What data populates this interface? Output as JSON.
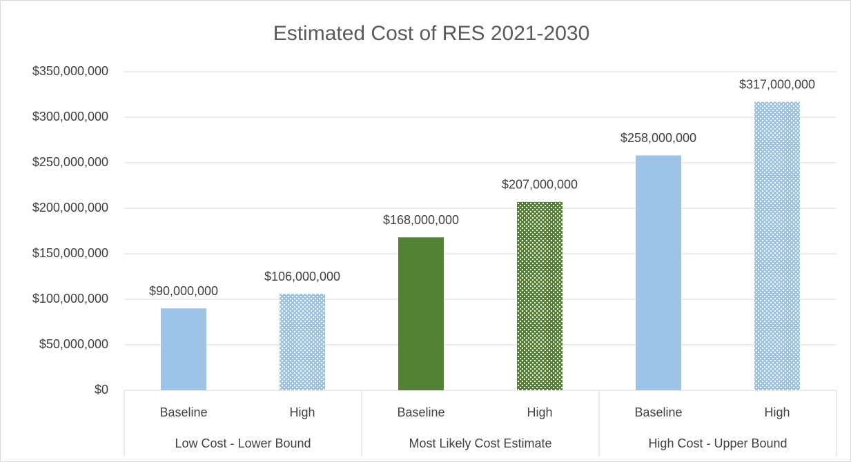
{
  "chart_data": {
    "type": "bar",
    "title": "Estimated Cost of RES 2021-2030",
    "categories": [
      "Baseline",
      "High",
      "Baseline",
      "High",
      "Baseline",
      "High"
    ],
    "category_groups": [
      "Low Cost - Lower Bound",
      "Most Likely Cost Estimate",
      "High Cost - Upper Bound"
    ],
    "values": [
      90000000,
      106000000,
      168000000,
      207000000,
      258000000,
      317000000
    ],
    "value_labels": [
      "$90,000,000",
      "$106,000,000",
      "$168,000,000",
      "$207,000,000",
      "$258,000,000",
      "$317,000,000"
    ],
    "colors": [
      "#9dc3e6",
      "#9dc3e6",
      "#548235",
      "#548235",
      "#9dc3e6",
      "#9dc3e6"
    ],
    "fills": [
      "solid",
      "dotted",
      "solid",
      "dotted",
      "solid",
      "dotted"
    ],
    "ylim": [
      0,
      350000000
    ],
    "yticks": [
      {
        "value": 0,
        "label": "$0"
      },
      {
        "value": 50000000,
        "label": "$50,000,000"
      },
      {
        "value": 100000000,
        "label": "$100,000,000"
      },
      {
        "value": 150000000,
        "label": "$150,000,000"
      },
      {
        "value": 200000000,
        "label": "$200,000,000"
      },
      {
        "value": 250000000,
        "label": "$250,000,000"
      },
      {
        "value": 300000000,
        "label": "$300,000,000"
      },
      {
        "value": 350000000,
        "label": "$350,000,000"
      }
    ],
    "grid": true
  }
}
